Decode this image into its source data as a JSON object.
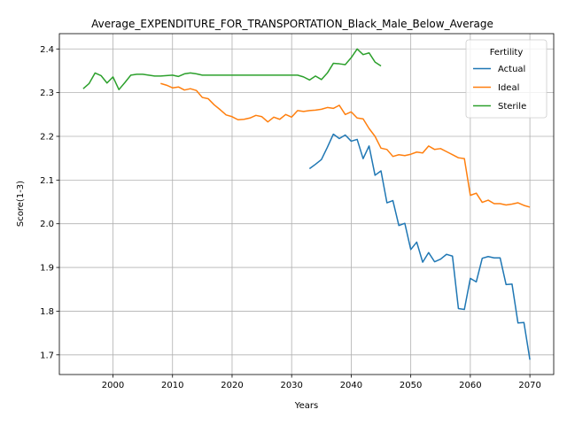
{
  "chart_data": {
    "type": "line",
    "title": "Average_EXPENDITURE_FOR_TRANSPORTATION_Black_Male_Below_Average",
    "xlabel": "Years",
    "ylabel": "Score(1-3)",
    "xlim": [
      1991,
      2074
    ],
    "ylim": [
      1.655,
      2.435
    ],
    "xticks": [
      2000,
      2010,
      2020,
      2030,
      2040,
      2050,
      2060,
      2070
    ],
    "yticks": [
      1.7,
      1.8,
      1.9,
      2.0,
      2.1,
      2.2,
      2.3,
      2.4
    ],
    "grid": true,
    "legend": {
      "title": "Fertility",
      "position": "top-right"
    },
    "series": [
      {
        "name": "Actual",
        "color": "#1f77b4",
        "points": [
          [
            2033,
            2.126
          ],
          [
            2034,
            2.136
          ],
          [
            2035,
            2.147
          ],
          [
            2036,
            2.175
          ],
          [
            2037,
            2.205
          ],
          [
            2038,
            2.195
          ],
          [
            2039,
            2.203
          ],
          [
            2040,
            2.189
          ],
          [
            2041,
            2.193
          ],
          [
            2042,
            2.149
          ],
          [
            2043,
            2.178
          ],
          [
            2044,
            2.111
          ],
          [
            2045,
            2.121
          ],
          [
            2046,
            2.048
          ],
          [
            2047,
            2.053
          ],
          [
            2048,
            1.996
          ],
          [
            2049,
            2.001
          ],
          [
            2050,
            1.941
          ],
          [
            2051,
            1.958
          ],
          [
            2052,
            1.912
          ],
          [
            2053,
            1.934
          ],
          [
            2054,
            1.913
          ],
          [
            2055,
            1.919
          ],
          [
            2056,
            1.93
          ],
          [
            2057,
            1.926
          ],
          [
            2058,
            1.806
          ],
          [
            2059,
            1.804
          ],
          [
            2060,
            1.875
          ],
          [
            2061,
            1.867
          ],
          [
            2062,
            1.921
          ],
          [
            2063,
            1.925
          ],
          [
            2064,
            1.922
          ],
          [
            2065,
            1.922
          ],
          [
            2066,
            1.861
          ],
          [
            2067,
            1.862
          ],
          [
            2068,
            1.773
          ],
          [
            2069,
            1.774
          ],
          [
            2070,
            1.689
          ]
        ]
      },
      {
        "name": "Ideal",
        "color": "#ff7f0e",
        "points": [
          [
            2008,
            2.321
          ],
          [
            2009,
            2.317
          ],
          [
            2010,
            2.311
          ],
          [
            2011,
            2.313
          ],
          [
            2012,
            2.306
          ],
          [
            2013,
            2.309
          ],
          [
            2014,
            2.305
          ],
          [
            2015,
            2.289
          ],
          [
            2016,
            2.286
          ],
          [
            2017,
            2.272
          ],
          [
            2018,
            2.261
          ],
          [
            2019,
            2.249
          ],
          [
            2020,
            2.245
          ],
          [
            2021,
            2.238
          ],
          [
            2022,
            2.239
          ],
          [
            2023,
            2.242
          ],
          [
            2024,
            2.248
          ],
          [
            2025,
            2.245
          ],
          [
            2026,
            2.233
          ],
          [
            2027,
            2.244
          ],
          [
            2028,
            2.239
          ],
          [
            2029,
            2.25
          ],
          [
            2030,
            2.244
          ],
          [
            2031,
            2.259
          ],
          [
            2032,
            2.257
          ],
          [
            2033,
            2.259
          ],
          [
            2034,
            2.26
          ],
          [
            2035,
            2.262
          ],
          [
            2036,
            2.266
          ],
          [
            2037,
            2.264
          ],
          [
            2038,
            2.271
          ],
          [
            2039,
            2.25
          ],
          [
            2040,
            2.256
          ],
          [
            2041,
            2.242
          ],
          [
            2042,
            2.24
          ],
          [
            2043,
            2.218
          ],
          [
            2044,
            2.2
          ],
          [
            2045,
            2.173
          ],
          [
            2046,
            2.17
          ],
          [
            2047,
            2.154
          ],
          [
            2048,
            2.158
          ],
          [
            2049,
            2.156
          ],
          [
            2050,
            2.159
          ],
          [
            2051,
            2.164
          ],
          [
            2052,
            2.162
          ],
          [
            2053,
            2.178
          ],
          [
            2054,
            2.17
          ],
          [
            2055,
            2.172
          ],
          [
            2056,
            2.165
          ],
          [
            2057,
            2.158
          ],
          [
            2058,
            2.151
          ],
          [
            2059,
            2.149
          ],
          [
            2060,
            2.065
          ],
          [
            2061,
            2.07
          ],
          [
            2062,
            2.049
          ],
          [
            2063,
            2.054
          ],
          [
            2064,
            2.046
          ],
          [
            2065,
            2.046
          ],
          [
            2066,
            2.043
          ],
          [
            2067,
            2.045
          ],
          [
            2068,
            2.048
          ],
          [
            2069,
            2.042
          ],
          [
            2070,
            2.038
          ]
        ]
      },
      {
        "name": "Sterile",
        "color": "#2ca02c",
        "points": [
          [
            1995,
            2.309
          ],
          [
            1996,
            2.321
          ],
          [
            1997,
            2.345
          ],
          [
            1998,
            2.339
          ],
          [
            1999,
            2.322
          ],
          [
            2000,
            2.336
          ],
          [
            2001,
            2.307
          ],
          [
            2002,
            2.323
          ],
          [
            2003,
            2.34
          ],
          [
            2004,
            2.342
          ],
          [
            2005,
            2.342
          ],
          [
            2006,
            2.34
          ],
          [
            2007,
            2.338
          ],
          [
            2008,
            2.338
          ],
          [
            2009,
            2.339
          ],
          [
            2010,
            2.34
          ],
          [
            2011,
            2.337
          ],
          [
            2012,
            2.343
          ],
          [
            2013,
            2.345
          ],
          [
            2014,
            2.343
          ],
          [
            2015,
            2.34
          ],
          [
            2016,
            2.34
          ],
          [
            2017,
            2.34
          ],
          [
            2018,
            2.34
          ],
          [
            2019,
            2.34
          ],
          [
            2020,
            2.34
          ],
          [
            2021,
            2.34
          ],
          [
            2022,
            2.34
          ],
          [
            2023,
            2.34
          ],
          [
            2024,
            2.34
          ],
          [
            2025,
            2.34
          ],
          [
            2026,
            2.34
          ],
          [
            2027,
            2.34
          ],
          [
            2028,
            2.34
          ],
          [
            2029,
            2.34
          ],
          [
            2030,
            2.34
          ],
          [
            2031,
            2.34
          ],
          [
            2032,
            2.336
          ],
          [
            2033,
            2.329
          ],
          [
            2034,
            2.338
          ],
          [
            2035,
            2.33
          ],
          [
            2036,
            2.345
          ],
          [
            2037,
            2.367
          ],
          [
            2038,
            2.366
          ],
          [
            2039,
            2.364
          ],
          [
            2040,
            2.38
          ],
          [
            2041,
            2.4
          ],
          [
            2042,
            2.387
          ],
          [
            2043,
            2.391
          ],
          [
            2044,
            2.37
          ],
          [
            2045,
            2.361
          ]
        ]
      }
    ]
  }
}
